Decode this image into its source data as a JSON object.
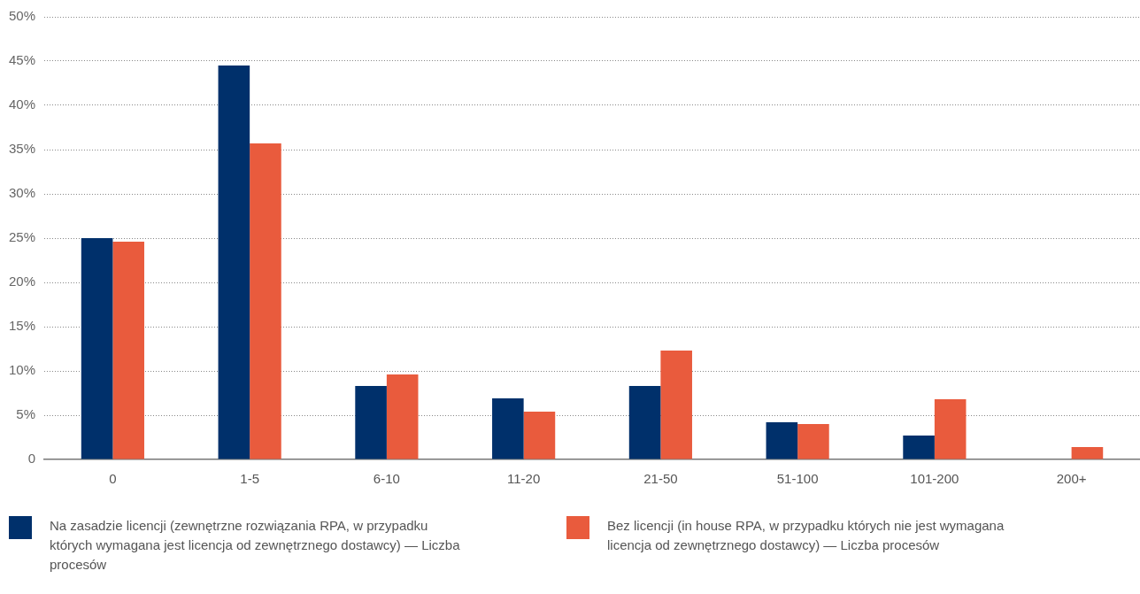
{
  "chart_data": {
    "type": "bar",
    "categories": [
      "0",
      "1-5",
      "6-10",
      "11-20",
      "21-50",
      "51-100",
      "101-200",
      "200+"
    ],
    "series": [
      {
        "name": "Na zasadzie licencji (zewnętrzne rozwiązania RPA, w przypadku których wymagana jest licencja od zewnętrznego dostawcy) — Liczba procesów",
        "color": "#00306b",
        "values": [
          25,
          44.5,
          8.3,
          6.9,
          8.3,
          4.2,
          2.7,
          0
        ]
      },
      {
        "name": "Bez licencji (in house RPA, w przypadku których nie jest wymagana licencja od zewnętrznego dostawcy) — Liczba procesów",
        "color": "#e95b3d",
        "values": [
          24.6,
          35.7,
          9.6,
          5.4,
          12.3,
          4.0,
          6.8,
          1.4
        ]
      }
    ],
    "ylim": [
      0,
      50
    ],
    "yticks": [
      {
        "value": 0,
        "label": "0"
      },
      {
        "value": 5,
        "label": "5%"
      },
      {
        "value": 10,
        "label": "10%"
      },
      {
        "value": 15,
        "label": "15%"
      },
      {
        "value": 20,
        "label": "20%"
      },
      {
        "value": 25,
        "label": "25%"
      },
      {
        "value": 30,
        "label": "30%"
      },
      {
        "value": 35,
        "label": "35%"
      },
      {
        "value": 40,
        "label": "40%"
      },
      {
        "value": 45,
        "label": "45%"
      },
      {
        "value": 50,
        "label": "50%"
      }
    ],
    "grid": "y",
    "legend": "bottom"
  }
}
